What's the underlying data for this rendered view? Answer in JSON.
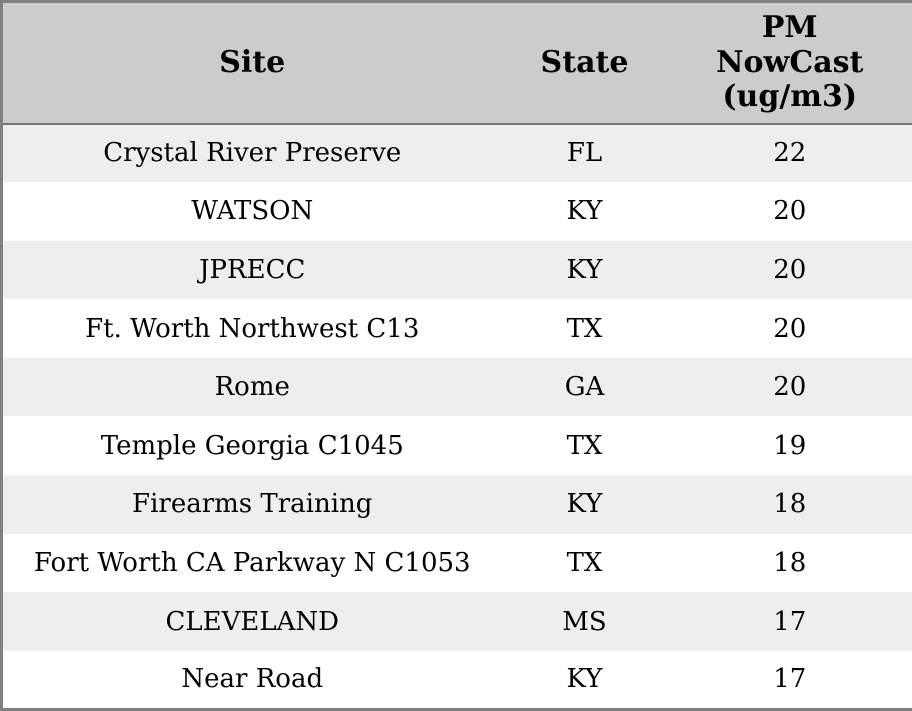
{
  "chart_data": {
    "type": "table",
    "columns": [
      "Site",
      "State",
      "PM NowCast (ug/m3)"
    ],
    "rows": [
      [
        "Crystal River Preserve",
        "FL",
        22
      ],
      [
        "WATSON",
        "KY",
        20
      ],
      [
        "JPRECC",
        "KY",
        20
      ],
      [
        "Ft. Worth Northwest C13",
        "TX",
        20
      ],
      [
        "Rome",
        "GA",
        20
      ],
      [
        "Temple Georgia C1045",
        "TX",
        19
      ],
      [
        "Firearms Training",
        "KY",
        18
      ],
      [
        "Fort Worth CA Parkway N C1053",
        "TX",
        18
      ],
      [
        "CLEVELAND",
        "MS",
        17
      ],
      [
        "Near Road",
        "KY",
        17
      ]
    ]
  },
  "header_display": {
    "site": "Site",
    "state": "State",
    "pm_nowcast": "PM\nNowCast\n(ug/m3)"
  },
  "colors": {
    "header_bg": "#cccccc",
    "row_alt_bg": "#eeeeee",
    "row_bg": "#ffffff",
    "border": "#808080",
    "header_separator": "#757575",
    "text": "#000000"
  }
}
